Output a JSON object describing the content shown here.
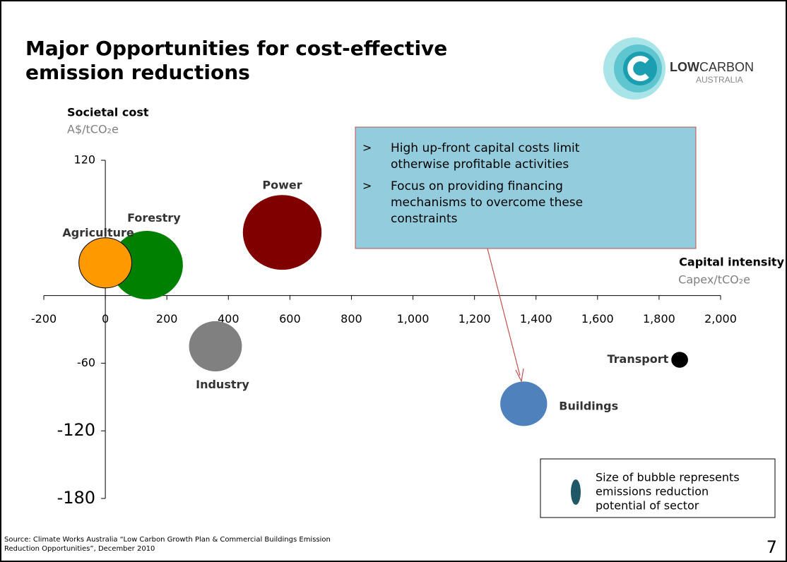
{
  "chart_data": {
    "type": "bubble",
    "title": [
      "Major Opportunities for cost-effective",
      "emission reductions"
    ],
    "y_axis_title": "Societal cost",
    "y_axis_unit": "A$/tCO₂e",
    "x_axis_title": "Capital intensity",
    "x_axis_unit": "Capex/tCO₂e",
    "xlim": [
      -200,
      2000
    ],
    "xticks": [
      -200,
      0,
      200,
      400,
      600,
      800,
      {
        "value": 1000,
        "label": "1,000"
      },
      {
        "value": 1200,
        "label": "1,200"
      },
      {
        "value": 1400,
        "label": "1,400"
      },
      {
        "value": 1600,
        "label": "1,600"
      },
      {
        "value": 1800,
        "label": "1,800"
      },
      {
        "value": 2000,
        "label": "2,000"
      }
    ],
    "ylim": [
      -180,
      120
    ],
    "yticks": [
      120,
      -60,
      -120,
      -180
    ],
    "series": [
      {
        "name": "Forestry",
        "color": "#008000",
        "x": [
          135
        ],
        "values": [
          27
        ],
        "sizes": [
          26
        ]
      },
      {
        "name": "Agriculture",
        "color": "#ff9900",
        "x": [
          0
        ],
        "values": [
          29
        ],
        "sizes": [
          14
        ]
      },
      {
        "name": "Power",
        "color": "#800000",
        "x": [
          575
        ],
        "values": [
          56
        ],
        "sizes": [
          31
        ]
      },
      {
        "name": "Industry",
        "color": "#808080",
        "x": [
          358
        ],
        "values": [
          -45
        ],
        "sizes": [
          14
        ]
      },
      {
        "name": "Buildings",
        "color": "#4f81bd",
        "x": [
          1360
        ],
        "values": [
          -96
        ],
        "sizes": [
          11
        ]
      },
      {
        "name": "Transport",
        "color": "#000000",
        "x": [
          1867
        ],
        "values": [
          -57
        ],
        "sizes": [
          1.4
        ]
      }
    ],
    "callout": {
      "bullet_marker": ">",
      "bullets": [
        [
          "High up-front capital costs limit",
          "otherwise profitable activities"
        ],
        [
          "Focus on providing financing",
          "mechanisms to overcome these",
          "constraints"
        ]
      ]
    },
    "legend_note": [
      "Size of bubble represents",
      "emissions reduction",
      "potential of sector"
    ]
  },
  "logo": {
    "word1": "LOW",
    "word2": "CARBON",
    "sub": "AUSTRALIA"
  },
  "source": [
    "Source: Climate Works Australia “Low Carbon Growth Plan & Commercial Buildings Emission",
    "Reduction Opportunities”, December 2010"
  ],
  "page_number": "7"
}
